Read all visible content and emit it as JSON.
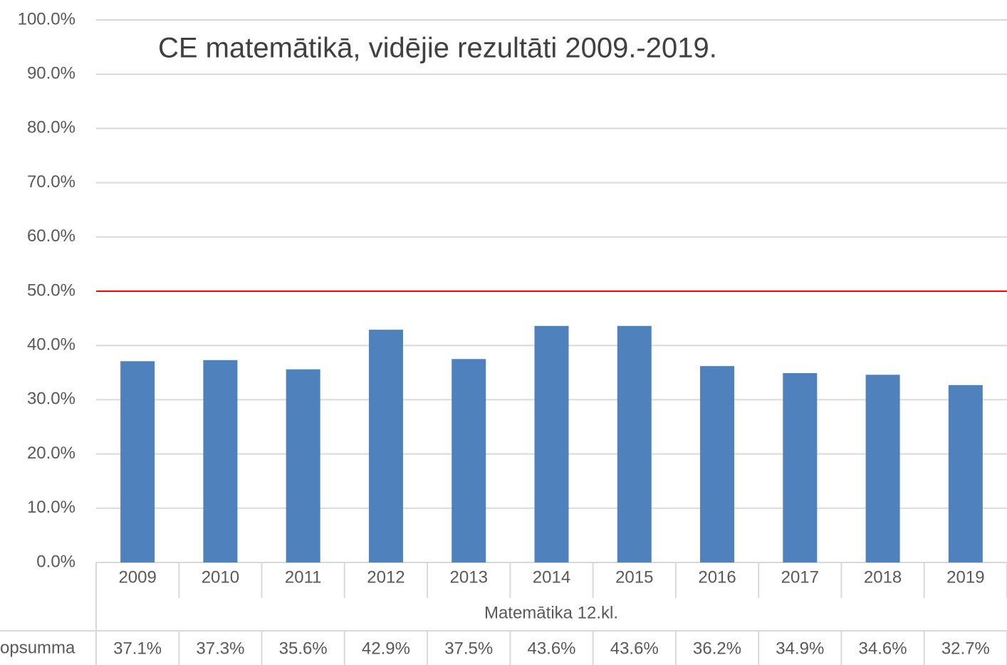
{
  "chart_data": {
    "type": "bar",
    "title": "CE matemātikā, vidējie rezultāti 2009.-2019.",
    "categories": [
      "2009",
      "2010",
      "2011",
      "2012",
      "2013",
      "2014",
      "2015",
      "2016",
      "2017",
      "2018",
      "2019"
    ],
    "values": [
      37.1,
      37.3,
      35.6,
      42.9,
      37.5,
      43.6,
      43.6,
      36.2,
      34.9,
      34.6,
      32.7
    ],
    "value_labels": [
      "37.1%",
      "37.3%",
      "35.6%",
      "42.9%",
      "37.5%",
      "43.6%",
      "43.6%",
      "36.2%",
      "34.9%",
      "34.6%",
      "32.7%"
    ],
    "color": "#4f81bd",
    "x_group_label": "Matemātika 12.kl.",
    "table_row_label": "opsumma",
    "ylim": [
      0,
      100
    ],
    "yticks": [
      {
        "value": 0,
        "label": "0.0%"
      },
      {
        "value": 10,
        "label": "10.0%"
      },
      {
        "value": 20,
        "label": "20.0%"
      },
      {
        "value": 30,
        "label": "30.0%"
      },
      {
        "value": 40,
        "label": "40.0%"
      },
      {
        "value": 50,
        "label": "50.0%"
      },
      {
        "value": 60,
        "label": "60.0%"
      },
      {
        "value": 70,
        "label": "70.0%"
      },
      {
        "value": 80,
        "label": "80.0%"
      },
      {
        "value": 90,
        "label": "90.0%"
      },
      {
        "value": 100,
        "label": "100.0%"
      }
    ],
    "grid": true,
    "reference_line": {
      "value": 50,
      "color": "#ff0000"
    }
  }
}
